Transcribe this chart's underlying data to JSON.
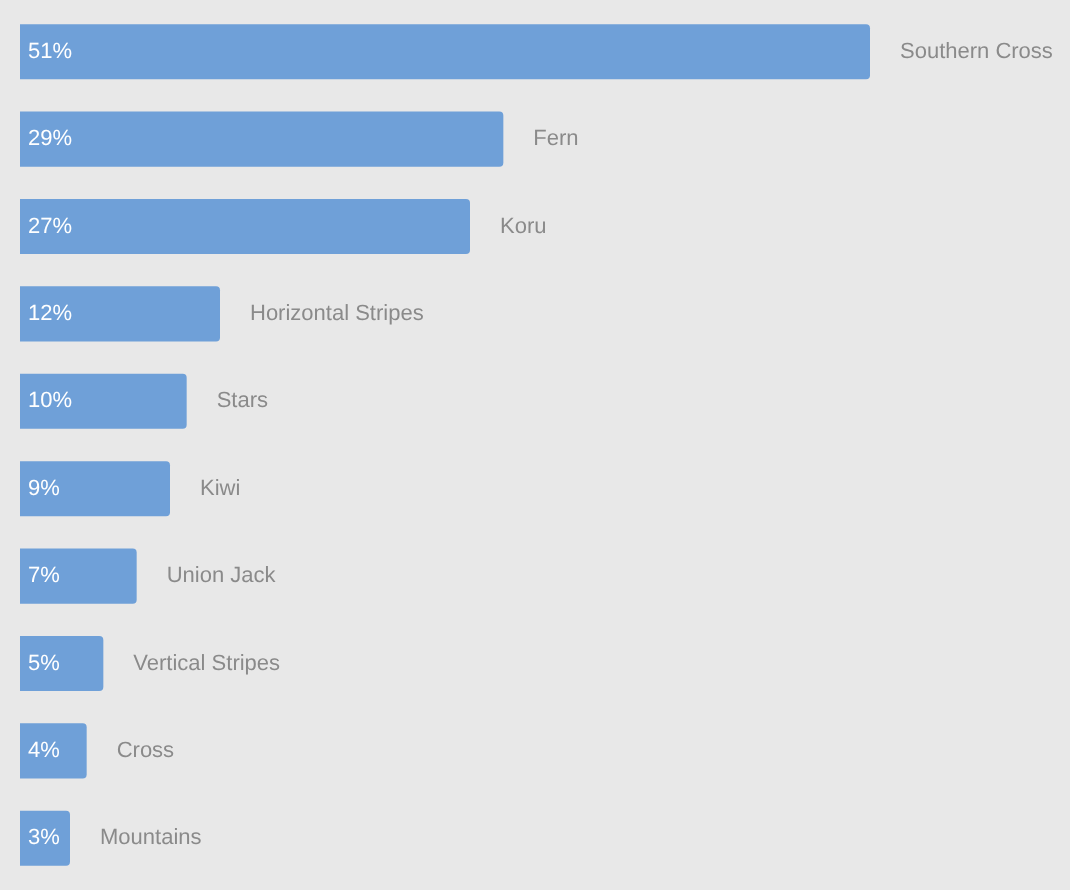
{
  "chart_data": {
    "type": "bar",
    "orientation": "horizontal",
    "categories": [
      "Southern Cross",
      "Fern",
      "Koru",
      "Horizontal Stripes",
      "Stars",
      "Kiwi",
      "Union Jack",
      "Vertical Stripes",
      "Cross",
      "Mountains"
    ],
    "values": [
      51,
      29,
      27,
      12,
      10,
      9,
      7,
      5,
      4,
      3
    ],
    "value_labels": [
      "51%",
      "29%",
      "27%",
      "12%",
      "10%",
      "9%",
      "7%",
      "5%",
      "4%",
      "3%"
    ],
    "color": "#6fa0d8",
    "xlim": [
      0,
      63
    ],
    "tick_labels": false,
    "legend": false
  }
}
